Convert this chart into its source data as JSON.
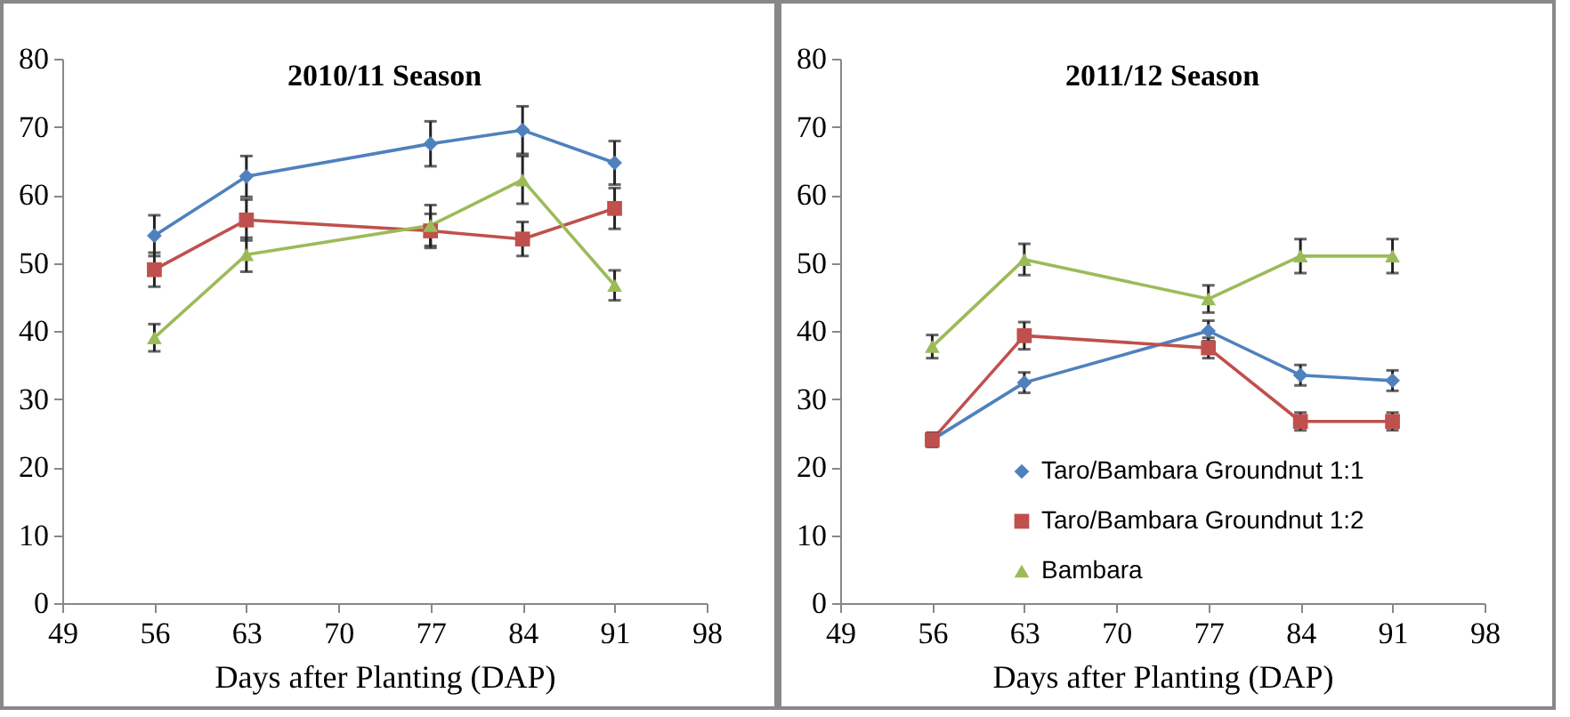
{
  "chart_data": [
    {
      "type": "line",
      "title": "2010/11 Season",
      "xlabel": "Days after Planting (DAP)",
      "x": [
        56,
        63,
        77,
        84,
        91
      ],
      "xlim": [
        49,
        98
      ],
      "xticks": [
        49,
        56,
        63,
        70,
        77,
        84,
        91,
        98
      ],
      "ylim": [
        0,
        80
      ],
      "yticks": [
        0,
        10,
        20,
        30,
        40,
        50,
        60,
        70,
        80
      ],
      "grid": false,
      "series": [
        {
          "color": "#4f81bd",
          "marker": "diamond",
          "values": [
            54,
            62.7,
            67.5,
            69.5,
            64.7
          ],
          "errors": [
            3,
            3,
            3.3,
            3.5,
            3.2
          ]
        },
        {
          "color": "#c0504d",
          "marker": "square",
          "values": [
            49,
            56.3,
            54.7,
            53.5,
            58
          ],
          "errors": [
            2.5,
            3,
            2.5,
            2.5,
            3
          ]
        },
        {
          "color": "#9bbb59",
          "marker": "triangle",
          "values": [
            39,
            51.2,
            55.5,
            62.2,
            46.7
          ],
          "errors": [
            2,
            2.5,
            3,
            3.5,
            2.2
          ]
        }
      ]
    },
    {
      "type": "line",
      "title": "2011/12 Season",
      "xlabel": "Days after Planting (DAP)",
      "x": [
        56,
        63,
        77,
        84,
        91
      ],
      "xlim": [
        49,
        98
      ],
      "xticks": [
        49,
        56,
        63,
        70,
        77,
        84,
        91,
        98
      ],
      "ylim": [
        0,
        80
      ],
      "yticks": [
        0,
        10,
        20,
        30,
        40,
        50,
        60,
        70,
        80
      ],
      "grid": false,
      "legend": "bottom right",
      "series": [
        {
          "name": "Taro/Bambara Groundnut 1:1",
          "color": "#4f81bd",
          "marker": "diamond",
          "values": [
            24,
            32.4,
            40,
            33.5,
            32.7
          ],
          "errors": [
            1,
            1.5,
            1.5,
            1.5,
            1.5
          ]
        },
        {
          "name": "Taro/Bambara Groundnut 1:2",
          "color": "#c0504d",
          "marker": "square",
          "values": [
            24,
            39.3,
            37.5,
            26.7,
            26.7
          ],
          "errors": [
            1,
            2,
            1.5,
            1.3,
            1.3
          ]
        },
        {
          "name": "Bambara",
          "color": "#9bbb59",
          "marker": "triangle",
          "values": [
            37.7,
            50.5,
            44.7,
            51,
            51
          ],
          "errors": [
            1.7,
            2.3,
            2,
            2.5,
            2.5
          ]
        }
      ]
    }
  ]
}
